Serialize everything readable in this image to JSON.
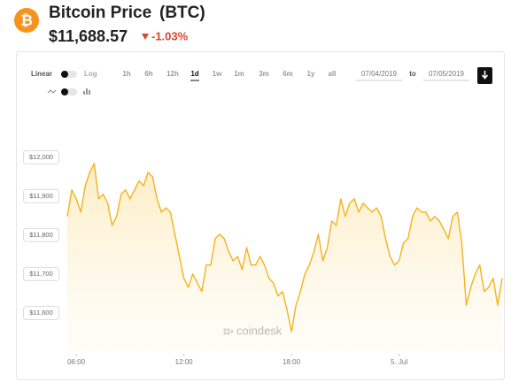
{
  "header": {
    "title": "Bitcoin Price",
    "ticker": "(BTC)",
    "price": "$11,688.57",
    "change": "-1.03%"
  },
  "controls": {
    "scale_options": [
      "Linear",
      "Log"
    ],
    "ranges": [
      "1h",
      "6h",
      "12h",
      "1d",
      "1w",
      "1m",
      "3m",
      "6m",
      "1y",
      "all"
    ],
    "selected_range": "1d",
    "date_from": "07/04/2019",
    "date_separator": "to",
    "date_to": "07/05/2019"
  },
  "chart_data": {
    "type": "line",
    "watermark": "coindesk",
    "color": "#f5b21c",
    "area": true,
    "x": [
      5.5,
      5.75,
      6,
      6.25,
      6.5,
      6.75,
      7,
      7.25,
      7.5,
      7.75,
      8,
      8.25,
      8.5,
      8.75,
      9,
      9.25,
      9.5,
      9.75,
      10,
      10.25,
      10.5,
      10.75,
      11,
      11.25,
      11.5,
      11.75,
      12,
      12.25,
      12.5,
      12.75,
      13,
      13.25,
      13.5,
      13.75,
      14,
      14.25,
      14.5,
      14.75,
      15,
      15.25,
      15.5,
      15.75,
      16,
      16.25,
      16.5,
      16.75,
      17,
      17.25,
      17.5,
      17.75,
      18,
      18.25,
      18.5,
      18.75,
      19,
      19.25,
      19.5,
      19.75,
      20,
      20.25,
      20.5,
      20.75,
      21,
      21.25,
      21.5,
      21.75,
      22,
      22.25,
      22.5,
      22.75,
      23,
      23.25,
      23.5,
      23.75,
      24,
      24.25,
      24.5,
      24.75,
      25,
      25.25,
      25.5,
      25.75,
      26,
      26.25,
      26.5,
      26.75,
      27,
      27.25,
      27.5,
      27.75,
      28,
      28.25,
      28.5,
      28.75,
      29,
      29.25,
      29.5,
      29.75
    ],
    "values": [
      11848,
      11916,
      11893,
      11859,
      11927,
      11961,
      11984,
      11893,
      11905,
      11882,
      11825,
      11848,
      11905,
      11916,
      11893,
      11916,
      11939,
      11927,
      11961,
      11950,
      11893,
      11859,
      11870,
      11859,
      11802,
      11745,
      11689,
      11666,
      11700,
      11677,
      11655,
      11723,
      11723,
      11791,
      11802,
      11791,
      11757,
      11734,
      11745,
      11711,
      11768,
      11723,
      11723,
      11745,
      11723,
      11689,
      11677,
      11643,
      11655,
      11609,
      11552,
      11620,
      11655,
      11700,
      11723,
      11757,
      11802,
      11734,
      11768,
      11836,
      11825,
      11893,
      11848,
      11882,
      11893,
      11859,
      11882,
      11870,
      11859,
      11870,
      11848,
      11791,
      11745,
      11723,
      11734,
      11780,
      11791,
      11848,
      11870,
      11859,
      11859,
      11836,
      11848,
      11836,
      11814,
      11791,
      11848,
      11859,
      11780,
      11620,
      11666,
      11700,
      11723,
      11655,
      11666,
      11689,
      11620,
      11689
    ],
    "xlim": [
      5.45,
      29.8
    ],
    "xticks": [
      {
        "value": 6,
        "label": "06:00"
      },
      {
        "value": 12,
        "label": "12:00"
      },
      {
        "value": 18,
        "label": "18:00"
      },
      {
        "value": 24,
        "label": "5. Jul"
      }
    ],
    "ylim": [
      11500,
      12070
    ],
    "yticks": [
      {
        "value": 11600,
        "label": "$11,600"
      },
      {
        "value": 11700,
        "label": "$11,700"
      },
      {
        "value": 11800,
        "label": "$11,800"
      },
      {
        "value": 11900,
        "label": "$11,900"
      },
      {
        "value": 12000,
        "label": "$12,000"
      }
    ]
  }
}
